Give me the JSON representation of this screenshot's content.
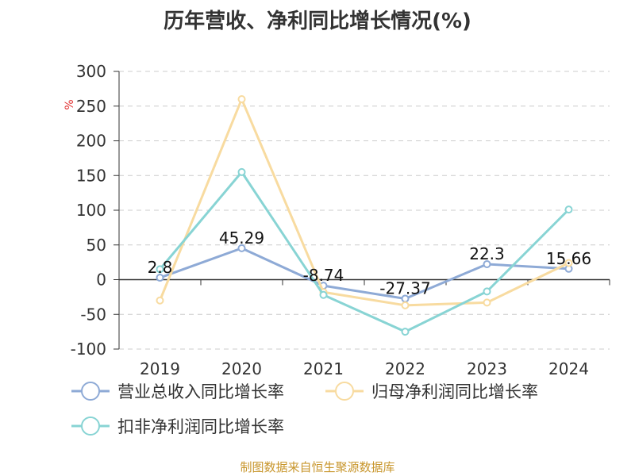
{
  "chart_data": {
    "type": "line",
    "title": "历年营收、净利同比增长情况(%)",
    "ylabel": "%",
    "xlabel": "",
    "categories": [
      "2019",
      "2020",
      "2021",
      "2022",
      "2023",
      "2024"
    ],
    "ylim": [
      -100,
      300
    ],
    "yticks": [
      300,
      250,
      200,
      150,
      100,
      50,
      0,
      -50,
      -100
    ],
    "grid": true,
    "legend_position": "bottom",
    "series": [
      {
        "name": "营业总收入同比增长率",
        "values": [
          2.8,
          45.29,
          -8.74,
          -27.37,
          22.3,
          15.66
        ],
        "labels": [
          "2.8",
          "45.29",
          "-8.74",
          "-27.37",
          "22.3",
          "15.66"
        ],
        "color": "#8eaad6"
      },
      {
        "name": "归母净利润同比增长率",
        "values": [
          -30,
          260,
          -18,
          -37,
          -33,
          24
        ],
        "color": "#f8dba0"
      },
      {
        "name": "扣非净利润同比增长率",
        "values": [
          15,
          155,
          -22,
          -75,
          -17,
          101
        ],
        "color": "#88d4d4"
      }
    ]
  },
  "source": "制图数据来自恒生聚源数据库"
}
